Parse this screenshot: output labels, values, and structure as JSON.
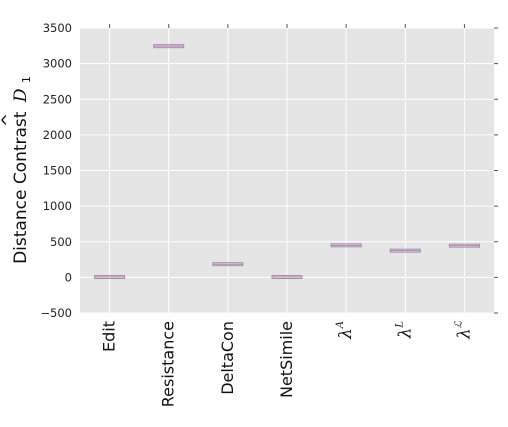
{
  "chart_data": {
    "type": "box",
    "ylabel": "Distance Contrast",
    "ylabel_symbol": "D",
    "ylabel_symbol_accent": "^",
    "ylabel_subscript": "1",
    "ylim": [
      -500,
      3500
    ],
    "yticks": [
      -500,
      0,
      500,
      1000,
      1500,
      2000,
      2500,
      3000,
      3500
    ],
    "ytick_labels": [
      "−500",
      "0",
      "500",
      "1000",
      "1500",
      "2000",
      "2500",
      "3000",
      "3500"
    ],
    "grid": true,
    "background": "#e5e5e5",
    "box_color": "#9b8ec4",
    "median_color": "#c27f7f",
    "categories": [
      {
        "label": "Edit",
        "math": false,
        "sup": ""
      },
      {
        "label": "Resistance",
        "math": false,
        "sup": ""
      },
      {
        "label": "DeltaCon",
        "math": false,
        "sup": ""
      },
      {
        "label": "NetSimile",
        "math": false,
        "sup": ""
      },
      {
        "label": "λ",
        "math": true,
        "sup": "A"
      },
      {
        "label": "λ",
        "math": true,
        "sup": "L"
      },
      {
        "label": "λ",
        "math": true,
        "sup": "ℒ"
      }
    ],
    "values": [
      5,
      3245,
      185,
      5,
      450,
      375,
      445
    ]
  }
}
